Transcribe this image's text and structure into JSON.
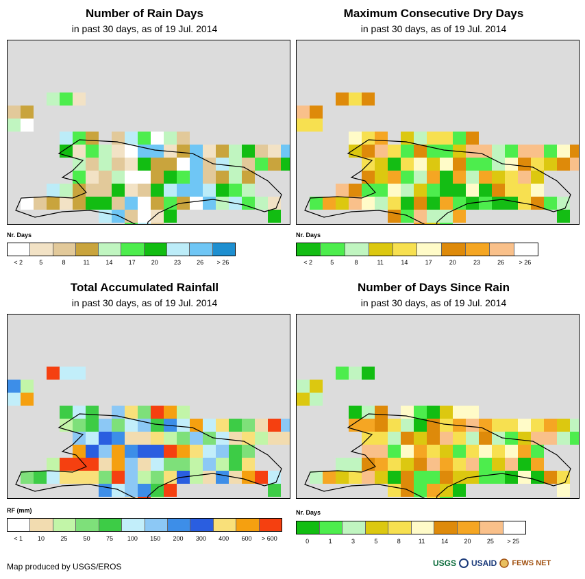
{
  "panels": [
    {
      "id": "rain-days",
      "title": "Number of Rain Days",
      "subtitle": "in past 30 days, as of 19 Jul. 2014",
      "legend_title": "Nr. Days",
      "legend_colors": [
        "#ffffff",
        "#f2e2c5",
        "#e2c99a",
        "#c9a43d",
        "#c0f5c0",
        "#4ded4d",
        "#12bd12",
        "#bcecf8",
        "#6fc6f5",
        "#1e8fd0"
      ],
      "legend_labels": [
        "< 2",
        "5",
        "8",
        "11",
        "14",
        "17",
        "20",
        "23",
        "26",
        "> 26"
      ]
    },
    {
      "id": "max-dry-days",
      "title": "Maximum Consecutive Dry Days",
      "subtitle": "in past 30 days, as of 19 Jul. 2014",
      "legend_title": "Nr. Days",
      "legend_colors": [
        "#14bd14",
        "#4ded4d",
        "#c0f5c0",
        "#dcc810",
        "#f7e050",
        "#fffbc8",
        "#de8a0a",
        "#f5a623",
        "#f9c08a",
        "#ffffff"
      ],
      "legend_labels": [
        "< 2",
        "5",
        "8",
        "11",
        "14",
        "17",
        "20",
        "23",
        "26",
        "> 26"
      ]
    },
    {
      "id": "total-rainfall",
      "title": "Total Accumulated Rainfall",
      "subtitle": "in past 30 days, as of 19 Jul. 2014",
      "legend_title": "RF (mm)",
      "legend_colors": [
        "#ffffff",
        "#f2dcb0",
        "#c2f5a8",
        "#7ee07a",
        "#3dcc46",
        "#c2eefa",
        "#8cc8f5",
        "#3d8ee8",
        "#2a5ee0",
        "#f9e07a",
        "#f5a010",
        "#f54010"
      ],
      "legend_labels": [
        "< 1",
        "10",
        "25",
        "50",
        "75",
        "100",
        "150",
        "200",
        "300",
        "400",
        "600",
        "> 600"
      ]
    },
    {
      "id": "days-since-rain",
      "title": "Number of Days Since Rain",
      "subtitle": "in past 30 days, as of 19 Jul. 2014",
      "legend_title": "Nr. Days",
      "legend_colors": [
        "#12bd12",
        "#4ded4d",
        "#c0f5c0",
        "#dcc810",
        "#f7e050",
        "#fffbc8",
        "#de8a0a",
        "#f5a623",
        "#f9c08a",
        "#ffffff"
      ],
      "legend_labels": [
        "0",
        "1",
        "3",
        "5",
        "8",
        "11",
        "14",
        "20",
        "25",
        "> 25"
      ]
    }
  ],
  "credit": "Map produced by USGS/EROS",
  "logos": {
    "usgs": "USGS",
    "usaid": "USAID",
    "fewsnet": "FEWS NET"
  }
}
